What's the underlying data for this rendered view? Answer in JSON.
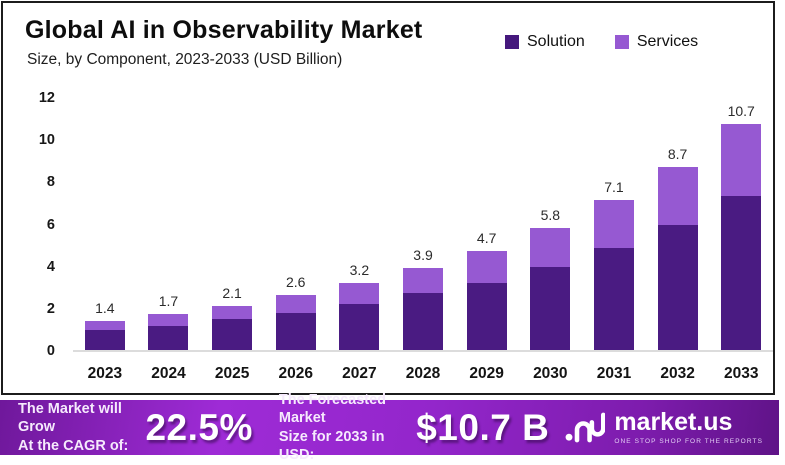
{
  "header": {
    "title": "Global AI in Observability Market",
    "subtitle": "Size, by Component, 2023-2033 (USD Billion)"
  },
  "legend": {
    "items": [
      {
        "label": "Solution",
        "color": "#45187d"
      },
      {
        "label": "Services",
        "color": "#9659d2"
      }
    ]
  },
  "chart_data": {
    "type": "bar",
    "stacked": true,
    "title": "Global AI in Observability Market",
    "subtitle": "Size, by Component, 2023-2033 (USD Billion)",
    "unit": "USD Billion",
    "categories": [
      "2023",
      "2024",
      "2025",
      "2026",
      "2027",
      "2028",
      "2029",
      "2030",
      "2031",
      "2032",
      "2033"
    ],
    "series": [
      {
        "name": "Solution",
        "color": "#4a1b82",
        "values": [
          0.95,
          1.15,
          1.45,
          1.75,
          2.2,
          2.7,
          3.2,
          3.95,
          4.85,
          5.95,
          7.3
        ]
      },
      {
        "name": "Services",
        "color": "#9659d2",
        "values": [
          0.45,
          0.55,
          0.65,
          0.85,
          1.0,
          1.2,
          1.5,
          1.85,
          2.25,
          2.75,
          3.4
        ]
      }
    ],
    "totals": [
      1.4,
      1.7,
      2.1,
      2.6,
      3.2,
      3.9,
      4.7,
      5.8,
      7.1,
      8.7,
      10.7
    ],
    "yticks": [
      0,
      2,
      4,
      6,
      8,
      10,
      12
    ],
    "ylim": [
      0,
      12
    ],
    "grid": false,
    "legend_position": "top-right"
  },
  "banner": {
    "cagr": {
      "line1": "The Market will Grow",
      "line2": "At the CAGR of:",
      "value": "22.5%"
    },
    "forecast": {
      "line1": "The Forecasted Market",
      "line2": "Size for 2033 in USD:",
      "value": "$10.7 B"
    },
    "brand": {
      "name": "market.us",
      "tagline": "ONE STOP SHOP FOR THE REPORTS"
    },
    "background": {
      "left": "#6f189b",
      "mid": "#9e2bd6",
      "right": "#5f1387"
    }
  }
}
